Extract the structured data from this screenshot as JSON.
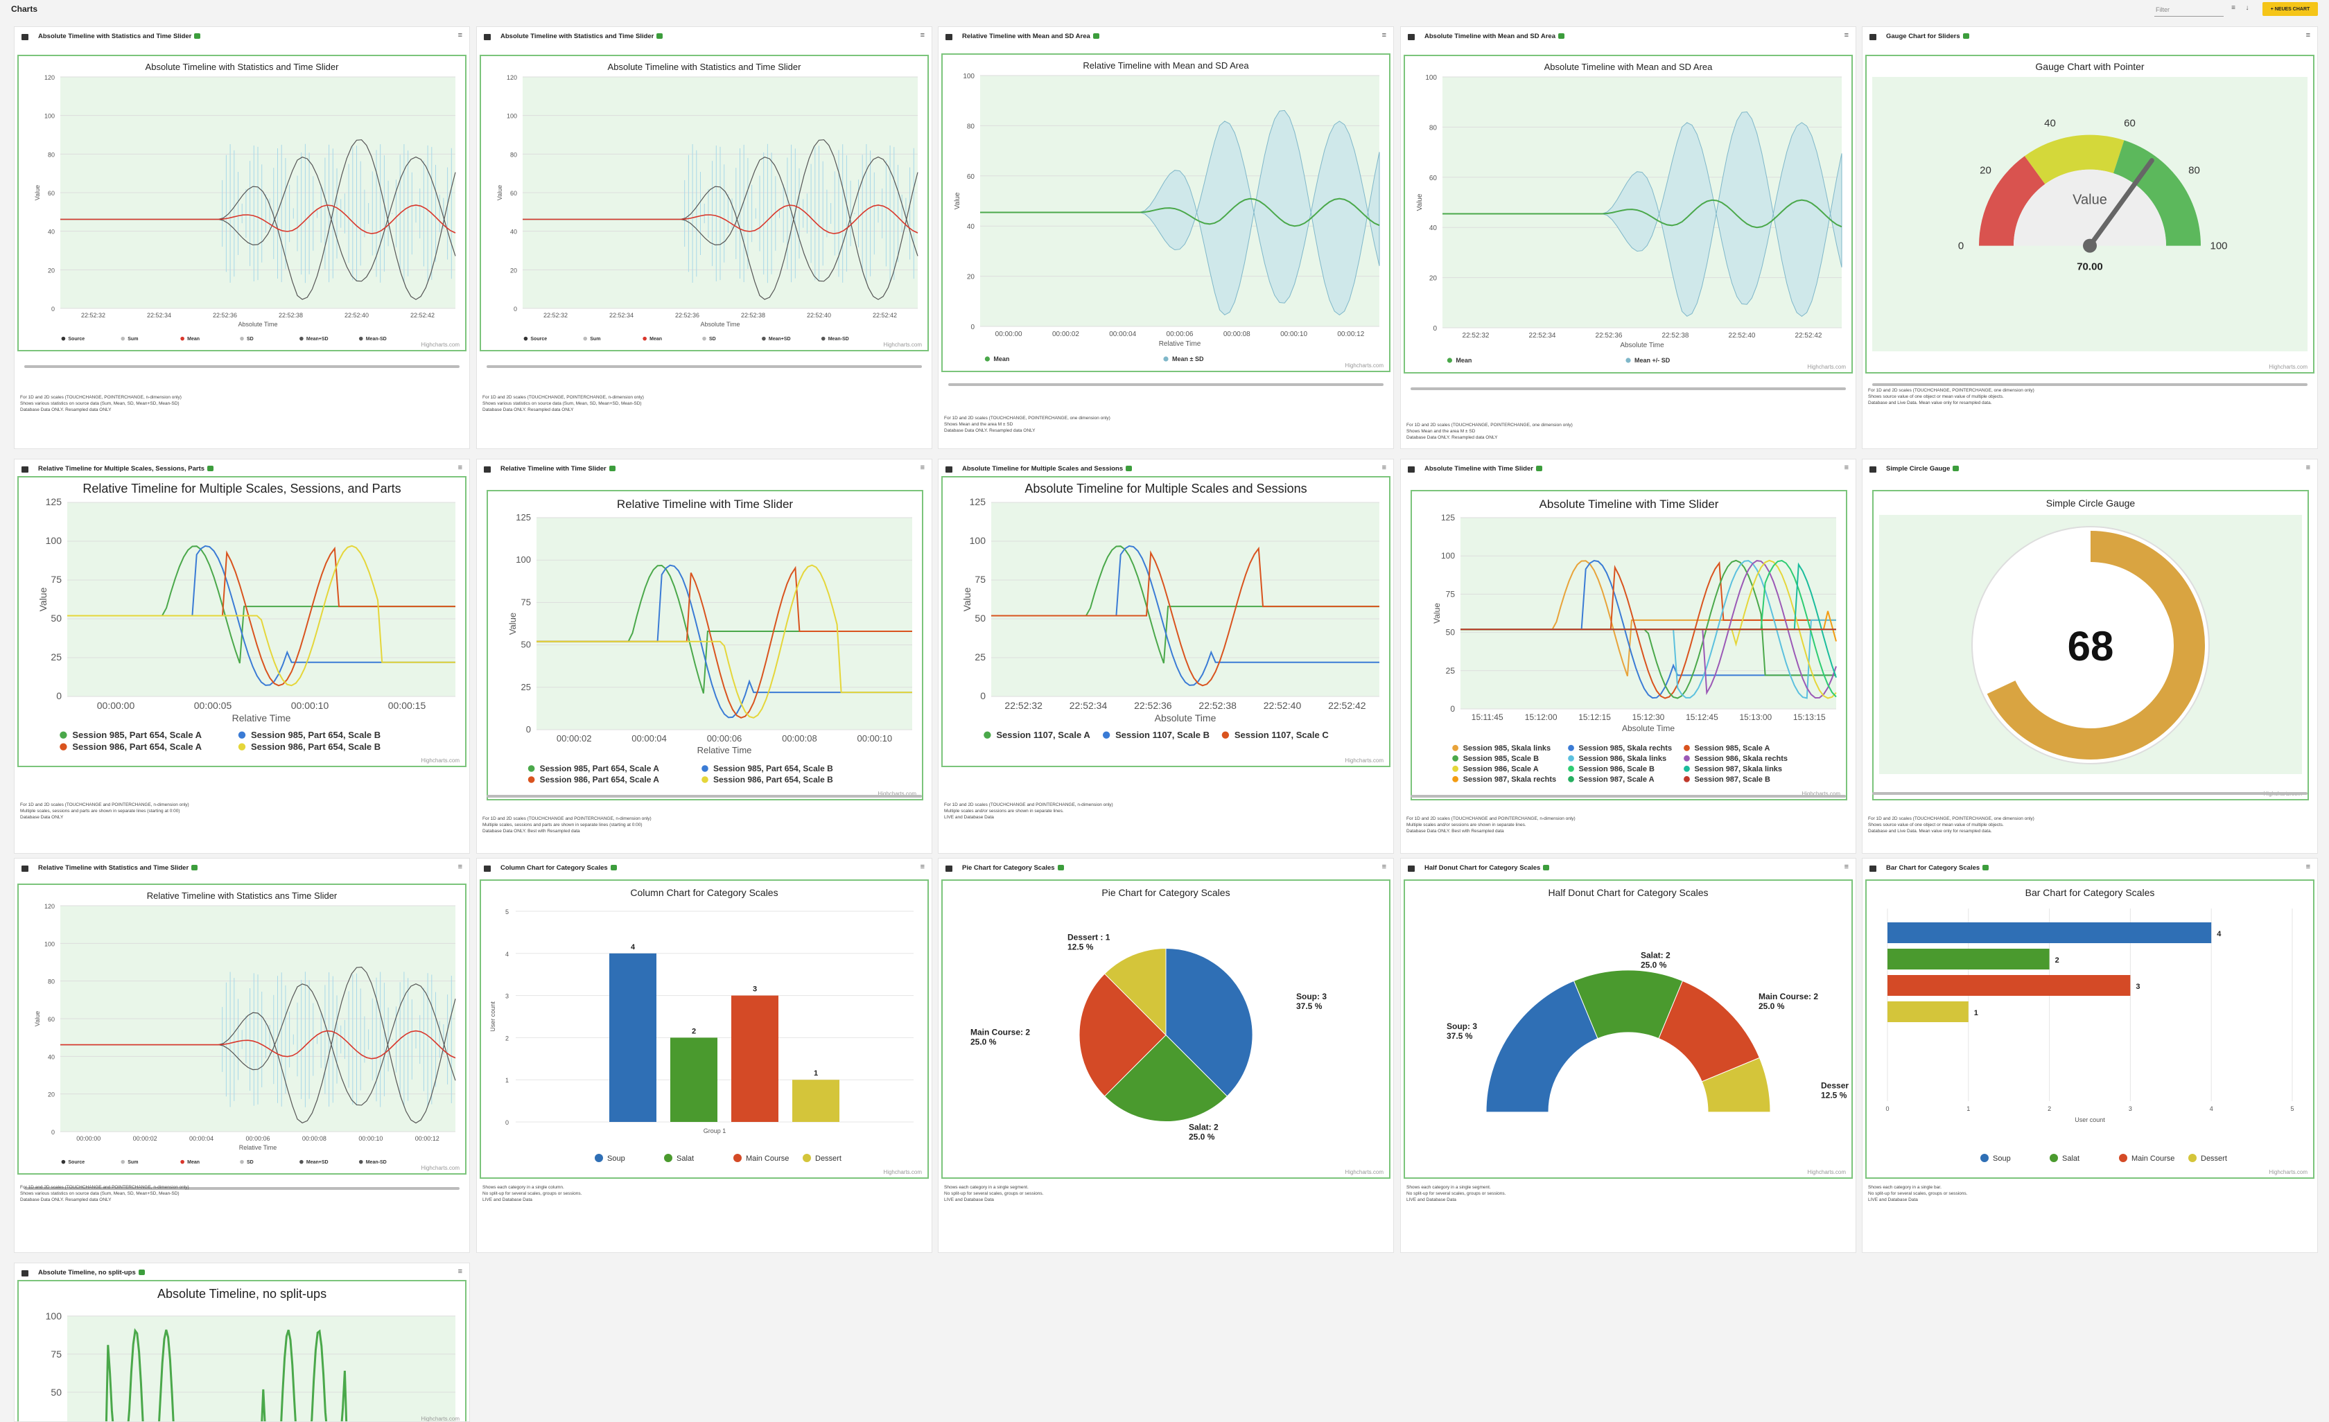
{
  "header": {
    "title": "Charts",
    "filter_placeholder": "Filter",
    "new_chart": "+ NEUES CHART"
  },
  "colors": {
    "frame": "#7bc47b",
    "plot_bg": "#e9f6e9",
    "mean": "#d9362b",
    "band": "#a8d8e8",
    "mean_green": "#4aa84a",
    "soup": "#2f6fb5",
    "salat": "#4a9a2e",
    "main": "#d44a26",
    "dessert": "#d4c53a"
  },
  "icons": {
    "card": "chart-card-icon",
    "lock": "lock-icon",
    "menu": "menu-icon"
  },
  "credit": "Highcharts.com",
  "cards": [
    {
      "title": "Absolute Timeline with Statistics and Time Slider",
      "chart_title": "Absolute Timeline with Statistics and Time Slider",
      "desc": "For 1D and 2D scales (TOUCHCHANGE, POINTERCHANGE, n-dimension only)\nShows various statistics on source data (Sum, Mean, SD, Mean+SD, Mean-SD)\nDatabase Data ONLY. Resampled data ONLY"
    },
    {
      "title": "Absolute Timeline with Statistics and Time Slider",
      "chart_title": "Absolute Timeline with Statistics and Time Slider",
      "desc": "For 1D and 2D scales (TOUCHCHANGE, POINTERCHANGE, n-dimension only)\nShows various statistics on source data (Sum, Mean, SD, Mean+SD, Mean-SD)\nDatabase Data ONLY. Resampled data ONLY"
    },
    {
      "title": "Relative Timeline with Mean and SD Area",
      "chart_title": "Relative Timeline with Mean and SD Area",
      "desc": "For 1D and 2D scales (TOUCHCHANGE, POINTERCHANGE, one dimension only)\nShows Mean and the area M ± SD\nDatabase Data ONLY. Resampled data ONLY"
    },
    {
      "title": "Absolute Timeline with Mean and SD Area",
      "chart_title": "Absolute Timeline with Mean and SD Area",
      "desc": "For 1D and 2D scales (TOUCHCHANGE, POINTERCHANGE, one dimension only)\nShows Mean and the area M ± SD\nDatabase Data ONLY. Resampled data ONLY"
    },
    {
      "title": "Gauge Chart for Sliders",
      "chart_title": "Gauge Chart with Pointer",
      "desc": "For 1D and 2D scales (TOUCHCHANGE, POINTERCHANGE, one dimension only)\nShows source value of one object or mean value of multiple objects.\nDatabase and Live Data. Mean value only for resampled data."
    },
    {
      "title": "Relative Timeline for Multiple Scales, Sessions, Parts",
      "chart_title": "Relative Timeline for Multiple Scales, Sessions, and Parts",
      "desc": "For 1D and 2D scales (TOUCHCHANGE and POINTERCHANGE, n-dimension only)\nMultiple scales, sessions and parts are shown in separate lines (starting at 0:00)\nDatabase Data ONLY"
    },
    {
      "title": "Relative Timeline with Time Slider",
      "chart_title": "Relative Timeline with Time Slider",
      "desc": "For 1D and 2D scales (TOUCHCHANGE and POINTERCHANGE, n-dimension only)\nMultiple scales, sessions and parts are shown in separate lines (starting at 0:00)\nDatabase Data ONLY. Best with Resampled data"
    },
    {
      "title": "Absolute Timeline for Multiple Scales and Sessions",
      "chart_title": "Absolute Timeline for Multiple Scales and Sessions",
      "desc": "For 1D and 2D scales (TOUCHCHANGE and POINTERCHANGE, n-dimension only)\nMultiple scales and/or sessions are shown in separate lines.\nLIVE and Database Data"
    },
    {
      "title": "Absolute Timeline with Time Slider",
      "chart_title": "Absolute Timeline with Time Slider",
      "desc": "For 1D and 2D scales (TOUCHCHANGE and POINTERCHANGE, n-dimension only)\nMultiple scales and/or sessions are shown in separate lines.\nDatabase Data ONLY. Best with Resampled data"
    },
    {
      "title": "Simple Circle Gauge",
      "chart_title": "Simple Circle Gauge",
      "desc": "For 1D and 2D scales (TOUCHCHANGE, POINTERCHANGE, one dimension only)\nShows source value of one object or mean value of multiple objects.\nDatabase and Live Data. Mean value only for resampled data."
    },
    {
      "title": "Relative Timeline with Statistics and Time Slider",
      "chart_title": "Relative Timeline with Statistics ans Time Slider",
      "desc": "For 1D and 2D scales (TOUCHCHANGE and POINTERCHANGE, n-dimension only)\nShows various statistics on source data (Sum, Mean, SD, Mean+SD, Mean-SD)\nDatabase Data ONLY. Resampled data ONLY"
    },
    {
      "title": "Column Chart for Category Scales",
      "chart_title": "Column Chart for Category Scales",
      "desc": "Shows each category in a single column.\nNo split-up for several scales, groups or sessions.\nLIVE and Database Data"
    },
    {
      "title": "Pie Chart for Category Scales",
      "chart_title": "Pie Chart for Category Scales",
      "desc": "Shows each category in a single segment.\nNo split-up for several scales, groups or sessions.\nLIVE and Database Data"
    },
    {
      "title": "Half Donut Chart for Category Scales",
      "chart_title": "Half Donut Chart for Category Scales",
      "desc": "Shows each category in a single segment.\nNo split-up for several scales, groups or sessions.\nLIVE and Database Data"
    },
    {
      "title": "Bar Chart for Category Scales",
      "chart_title": "Bar Chart for Category Scales",
      "desc": "Shows each category in a single bar.\nNo split-up for several scales, groups or sessions.\nLIVE and Database Data"
    },
    {
      "title": "Absolute Timeline, no split-ups",
      "chart_title": "Absolute Timeline, no split-ups",
      "desc": ""
    }
  ],
  "stats_legend": [
    "Source",
    "Sum",
    "Mean",
    "SD",
    "Mean+SD",
    "Mean-SD"
  ],
  "stats_axis": {
    "ylabel": "Value",
    "xlabel": "Absolute Time",
    "yticks": [
      "120",
      "100",
      "80",
      "60",
      "40",
      "20",
      "0"
    ],
    "xticks": [
      "22:52:32",
      "22:52:34",
      "22:52:36",
      "22:52:38",
      "22:52:40",
      "22:52:42"
    ]
  },
  "stats_rel_axis": {
    "ylabel": "Value",
    "xlabel": "Relative Time",
    "yticks": [
      "120",
      "100",
      "80",
      "60",
      "40",
      "20",
      "0"
    ],
    "xticks": [
      "00:00:00",
      "00:00:02",
      "00:00:04",
      "00:00:06",
      "00:00:08",
      "00:00:10",
      "00:00:12"
    ]
  },
  "sd_rel": {
    "ylabel": "Value",
    "xlabel": "Relative Time",
    "yticks": [
      "100",
      "80",
      "60",
      "40",
      "20",
      "0"
    ],
    "xticks": [
      "00:00:00",
      "00:00:02",
      "00:00:04",
      "00:00:06",
      "00:00:08",
      "00:00:10",
      "00:00:12"
    ],
    "legend": [
      "Mean",
      "Mean ± SD"
    ]
  },
  "sd_abs": {
    "ylabel": "Value",
    "xlabel": "Absolute Time",
    "yticks": [
      "100",
      "80",
      "60",
      "40",
      "20",
      "0"
    ],
    "xticks": [
      "22:52:32",
      "22:52:34",
      "22:52:36",
      "22:52:38",
      "22:52:40",
      "22:52:42"
    ],
    "legend": [
      "Mean",
      "Mean +/- SD"
    ]
  },
  "gauge": {
    "ticks": [
      "0",
      "20",
      "40",
      "60",
      "80",
      "100"
    ],
    "label": "Value",
    "value": 70,
    "value_text": "70.00"
  },
  "multi_rel": {
    "ylabel": "Value",
    "xlabel": "Relative Time",
    "yticks": [
      "125",
      "100",
      "75",
      "50",
      "25",
      "0"
    ],
    "xticks": [
      "00:00:00",
      "00:00:05",
      "00:00:10",
      "00:00:15"
    ],
    "legend": [
      "Session 985, Part 654, Scale A",
      "Session 985, Part 654, Scale B",
      "Session 986, Part 654, Scale A",
      "Session 986, Part 654, Scale B"
    ]
  },
  "rel_slider": {
    "ylabel": "Value",
    "xlabel": "Relative Time",
    "yticks": [
      "125",
      "100",
      "75",
      "50",
      "25",
      "0"
    ],
    "xticks": [
      "00:00:02",
      "00:00:04",
      "00:00:06",
      "00:00:08",
      "00:00:10"
    ],
    "legend": [
      "Session 985, Part 654, Scale A",
      "Session 985, Part 654, Scale B",
      "Session 986, Part 654, Scale A",
      "Session 986, Part 654, Scale B"
    ]
  },
  "multi_abs": {
    "ylabel": "Value",
    "xlabel": "Absolute Time",
    "yticks": [
      "125",
      "100",
      "75",
      "50",
      "25",
      "0"
    ],
    "xticks": [
      "22:52:32",
      "22:52:34",
      "22:52:36",
      "22:52:38",
      "22:52:40",
      "22:52:42"
    ],
    "legend": [
      "Session 1107, Scale A",
      "Session 1107, Scale B",
      "Session 1107, Scale C"
    ]
  },
  "abs_slider": {
    "ylabel": "Value",
    "xlabel": "Absolute Time",
    "yticks": [
      "125",
      "100",
      "75",
      "50",
      "25",
      "0"
    ],
    "xticks": [
      "15:11:45",
      "15:12:00",
      "15:12:15",
      "15:12:30",
      "15:12:45",
      "15:13:00",
      "15:13:15"
    ],
    "legend": [
      "Session 985, Skala links",
      "Session 985, Skala rechts",
      "Session 985, Scale A",
      "Session 985, Scale B",
      "Session 986, Skala links",
      "Session 986, Skala rechts",
      "Session 986, Scale A",
      "Session 986, Scale B",
      "Session 987, Skala links",
      "Session 987, Skala rechts",
      "Session 987, Scale A",
      "Session 987, Scale B"
    ]
  },
  "circle_gauge": {
    "value": 68,
    "value_text": "68"
  },
  "chart_data": [
    {
      "type": "bar",
      "title": "Column Chart for Category Scales",
      "categories": [
        "Group 1"
      ],
      "series": [
        {
          "name": "Soup",
          "values": [
            4
          ]
        },
        {
          "name": "Salat",
          "values": [
            2
          ]
        },
        {
          "name": "Main Course",
          "values": [
            3
          ]
        },
        {
          "name": "Dessert",
          "values": [
            1
          ]
        }
      ],
      "ylabel": "User count",
      "ylim": [
        0,
        5
      ],
      "yticks": [
        "5",
        "4",
        "3",
        "2",
        "1",
        "0"
      ],
      "data_labels": [
        "4",
        "2",
        "3",
        "1"
      ],
      "xlabel": "Group 1"
    },
    {
      "type": "pie",
      "title": "Pie Chart for Category Scales",
      "labels": [
        "Soup",
        "Salat",
        "Main Course",
        "Dessert"
      ],
      "values": [
        3,
        2,
        2,
        1
      ],
      "data_labels": [
        "Soup: 3",
        "37.5 %",
        "Salat: 2",
        "25.0 %",
        "Main Course: 2",
        "25.0 %",
        "Dessert : 1",
        "12.5 %"
      ]
    },
    {
      "type": "pie",
      "title": "Half Donut Chart for Category Scales",
      "labels": [
        "Soup",
        "Salat",
        "Main Course",
        "Dessert"
      ],
      "values": [
        3,
        2,
        2,
        1
      ],
      "data_labels": [
        "Soup: 3",
        "37.5 %",
        "Salat: 2",
        "25.0 %",
        "Main Course: 2",
        "25.0 %",
        "Desser",
        "12.5 %"
      ]
    },
    {
      "type": "bar",
      "title": "Bar Chart for Category Scales",
      "categories": [
        "Soup",
        "Salat",
        "Main Course",
        "Dessert"
      ],
      "values": [
        4,
        2,
        3,
        1
      ],
      "xlabel": "User count",
      "xlim": [
        0,
        5
      ],
      "xticks": [
        "0",
        "1",
        "2",
        "3",
        "4",
        "5"
      ],
      "data_labels": [
        "4",
        "2",
        "3",
        "1"
      ],
      "legend": [
        "Soup",
        "Salat",
        "Main Course",
        "Dessert"
      ]
    }
  ],
  "noaxis": {
    "yticks": [
      "100",
      "75",
      "50"
    ]
  }
}
